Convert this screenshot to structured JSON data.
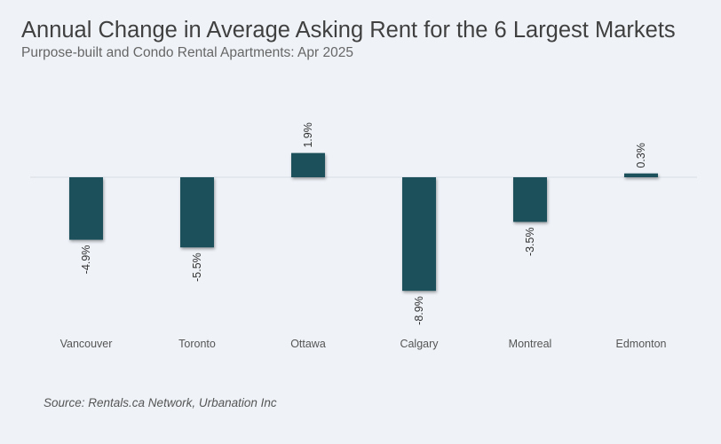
{
  "header": {
    "title": "Annual Change in Average Asking Rent for the 6 Largest Markets",
    "subtitle": "Purpose-built and Condo Rental Apartments: Apr 2025"
  },
  "footer": {
    "source": "Source: Rentals.ca Network, Urbanation Inc"
  },
  "colors": {
    "bar": "#1c515c",
    "zero_line": "#d6dde5",
    "background": "#eff3f8"
  },
  "chart_data": {
    "type": "bar",
    "title": "Annual Change in Average Asking Rent for the 6 Largest Markets",
    "subtitle": "Purpose-built and Condo Rental Apartments: Apr 2025",
    "categories": [
      "Vancouver",
      "Toronto",
      "Ottawa",
      "Calgary",
      "Montreal",
      "Edmonton"
    ],
    "values": [
      -4.9,
      -5.5,
      1.9,
      -8.9,
      -3.5,
      0.3
    ],
    "data_labels": [
      "-4.9%",
      "-5.5%",
      "1.9%",
      "-8.9%",
      "-3.5%",
      "0.3%"
    ],
    "xlabel": "",
    "ylabel": "",
    "grid": false,
    "legend": "none",
    "data_label_orientation": "vertical"
  }
}
